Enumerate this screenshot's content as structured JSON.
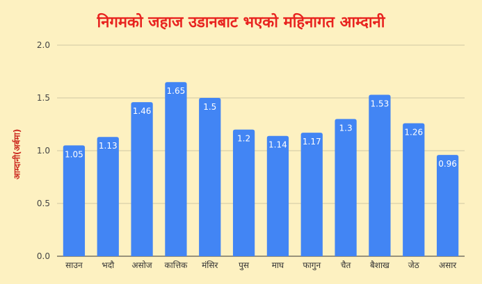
{
  "chart_data": {
    "type": "bar",
    "title": "निगमको जहाज उडानबाट भएको महिनागत आम्दानी",
    "ylabel": "आम्दानी(अर्बमा)",
    "xlabel": "",
    "categories": [
      "साउन",
      "भदौ",
      "असोज",
      "कात्तिक",
      "मंसिर",
      "पुस",
      "माघ",
      "फागुन",
      "चैत",
      "बैशाख",
      "जेठ",
      "असार"
    ],
    "values": [
      1.05,
      1.13,
      1.46,
      1.65,
      1.5,
      1.2,
      1.14,
      1.17,
      1.3,
      1.53,
      1.26,
      0.96
    ],
    "data_labels": [
      "1.05",
      "1.13",
      "1.46",
      "1.65",
      "1.5",
      "1.2",
      "1.14",
      "1.17",
      "1.3",
      "1.53",
      "1.26",
      "0.96"
    ],
    "ylim": [
      0,
      2
    ],
    "yticks": [
      "0.0",
      "0.5",
      "1.0",
      "1.5",
      "2.0"
    ],
    "grid": true,
    "legend": "none",
    "colors": {
      "bar": "#4285f4",
      "title": "#e8231f",
      "ylabel": "#cc2a1f",
      "background": "#fdf1c1"
    }
  }
}
